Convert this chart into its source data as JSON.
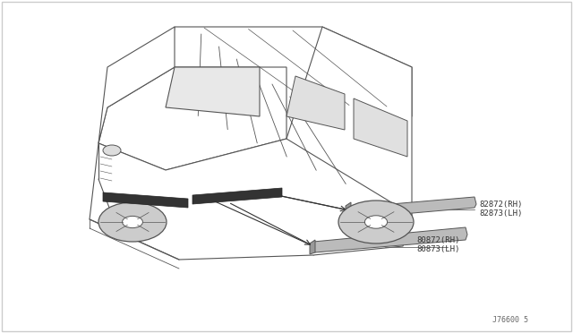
{
  "background_color": "#ffffff",
  "border_color": "#cccccc",
  "line_color": "#555555",
  "fig_width": 6.4,
  "fig_height": 3.72,
  "dpi": 100,
  "label_82872": "82872(RH)",
  "label_82873": "82873(LH)",
  "label_80872": "80872(RH)",
  "label_80873": "80873(LH)",
  "diagram_note": "J76600 5",
  "molding_color": "#888888",
  "car_outline_color": "#555555",
  "font_size_labels": 6.5,
  "font_size_note": 6.0
}
